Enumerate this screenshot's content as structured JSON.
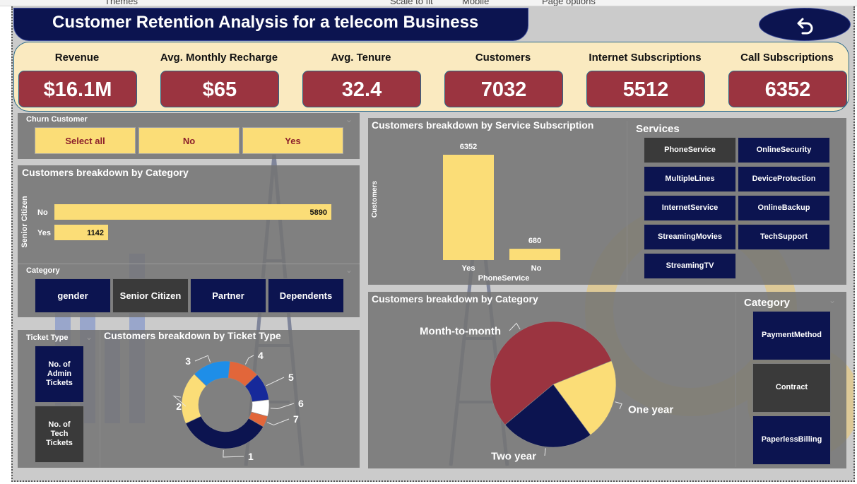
{
  "ribbon": {
    "items": [
      "Themes",
      "Scale to fit",
      "Mobile",
      "Page options"
    ]
  },
  "header": {
    "title": "Customer Retention Analysis for a telecom Business",
    "back_icon": "undo-arrow-icon"
  },
  "colors": {
    "navy": "#0c1450",
    "maroon": "#9b3440",
    "yellow": "#fbdd77",
    "orange": "#e2663a",
    "blue": "#1e8ee8",
    "white": "#ffffff",
    "cream": "#faeac0"
  },
  "kpis": [
    {
      "label": "Revenue",
      "value": "$16.1M"
    },
    {
      "label": "Avg. Monthly Recharge",
      "value": "$65"
    },
    {
      "label": "Avg. Tenure",
      "value": "32.4"
    },
    {
      "label": "Customers",
      "value": "7032"
    },
    {
      "label": "Internet Subscriptions",
      "value": "5512"
    },
    {
      "label": "Call Subscriptions",
      "value": "6352"
    }
  ],
  "churn_slicer": {
    "title": "Churn Customer",
    "options": [
      "Select all",
      "No",
      "Yes"
    ]
  },
  "category_slicer": {
    "title": "Category",
    "options": [
      "gender",
      "Senior Citizen",
      "Partner",
      "Dependents"
    ],
    "selected": "Senior Citizen"
  },
  "ticket_slicer": {
    "title": "Ticket Type",
    "options": [
      "No. of Admin Tickets",
      "No. of Tech Tickets"
    ],
    "selected": "No. of Tech Tickets"
  },
  "services_slicer": {
    "title": "Services",
    "options": [
      "PhoneService",
      "OnlineSecurity",
      "MultipleLines",
      "DeviceProtection",
      "InternetService",
      "OnlineBackup",
      "StreamingMovies",
      "TechSupport",
      "StreamingTV"
    ],
    "selected": "PhoneService"
  },
  "right_category_slicer": {
    "title": "Category",
    "options": [
      "PaymentMethod",
      "Contract",
      "PaperlessBilling"
    ],
    "selected": "Contract"
  },
  "chart_data": [
    {
      "id": "senior",
      "type": "bar",
      "orientation": "horizontal",
      "title": "Customers breakdown by Category",
      "ylabel": "Senior Citizen",
      "categories": [
        "No",
        "Yes"
      ],
      "values": [
        5890,
        1142
      ],
      "xlim": [
        0,
        5890
      ]
    },
    {
      "id": "service",
      "type": "bar",
      "title": "Customers breakdown by Service Subscription",
      "xlabel": "PhoneService",
      "ylabel": "Customers",
      "categories": [
        "Yes",
        "No"
      ],
      "values": [
        6352,
        680
      ],
      "ylim": [
        0,
        6352
      ]
    },
    {
      "id": "ticket",
      "type": "pie",
      "donut": true,
      "title": "Customers breakdown by Ticket Type",
      "labels": [
        "1",
        "2",
        "3",
        "4",
        "5",
        "6",
        "7"
      ],
      "values": [
        34,
        19,
        14,
        11,
        10,
        6,
        4
      ],
      "colors": [
        "#0c1450",
        "#fbdd77",
        "#1e8ee8",
        "#e2663a",
        "#16299a",
        "#ffffff",
        "#e2663a"
      ]
    },
    {
      "id": "contract",
      "type": "pie",
      "title": "Customers breakdown by Category",
      "labels": [
        "Month-to-month",
        "One year",
        "Two year"
      ],
      "values": [
        55,
        21,
        24
      ],
      "colors": [
        "#9b3440",
        "#fbdd77",
        "#0c1450"
      ]
    }
  ]
}
